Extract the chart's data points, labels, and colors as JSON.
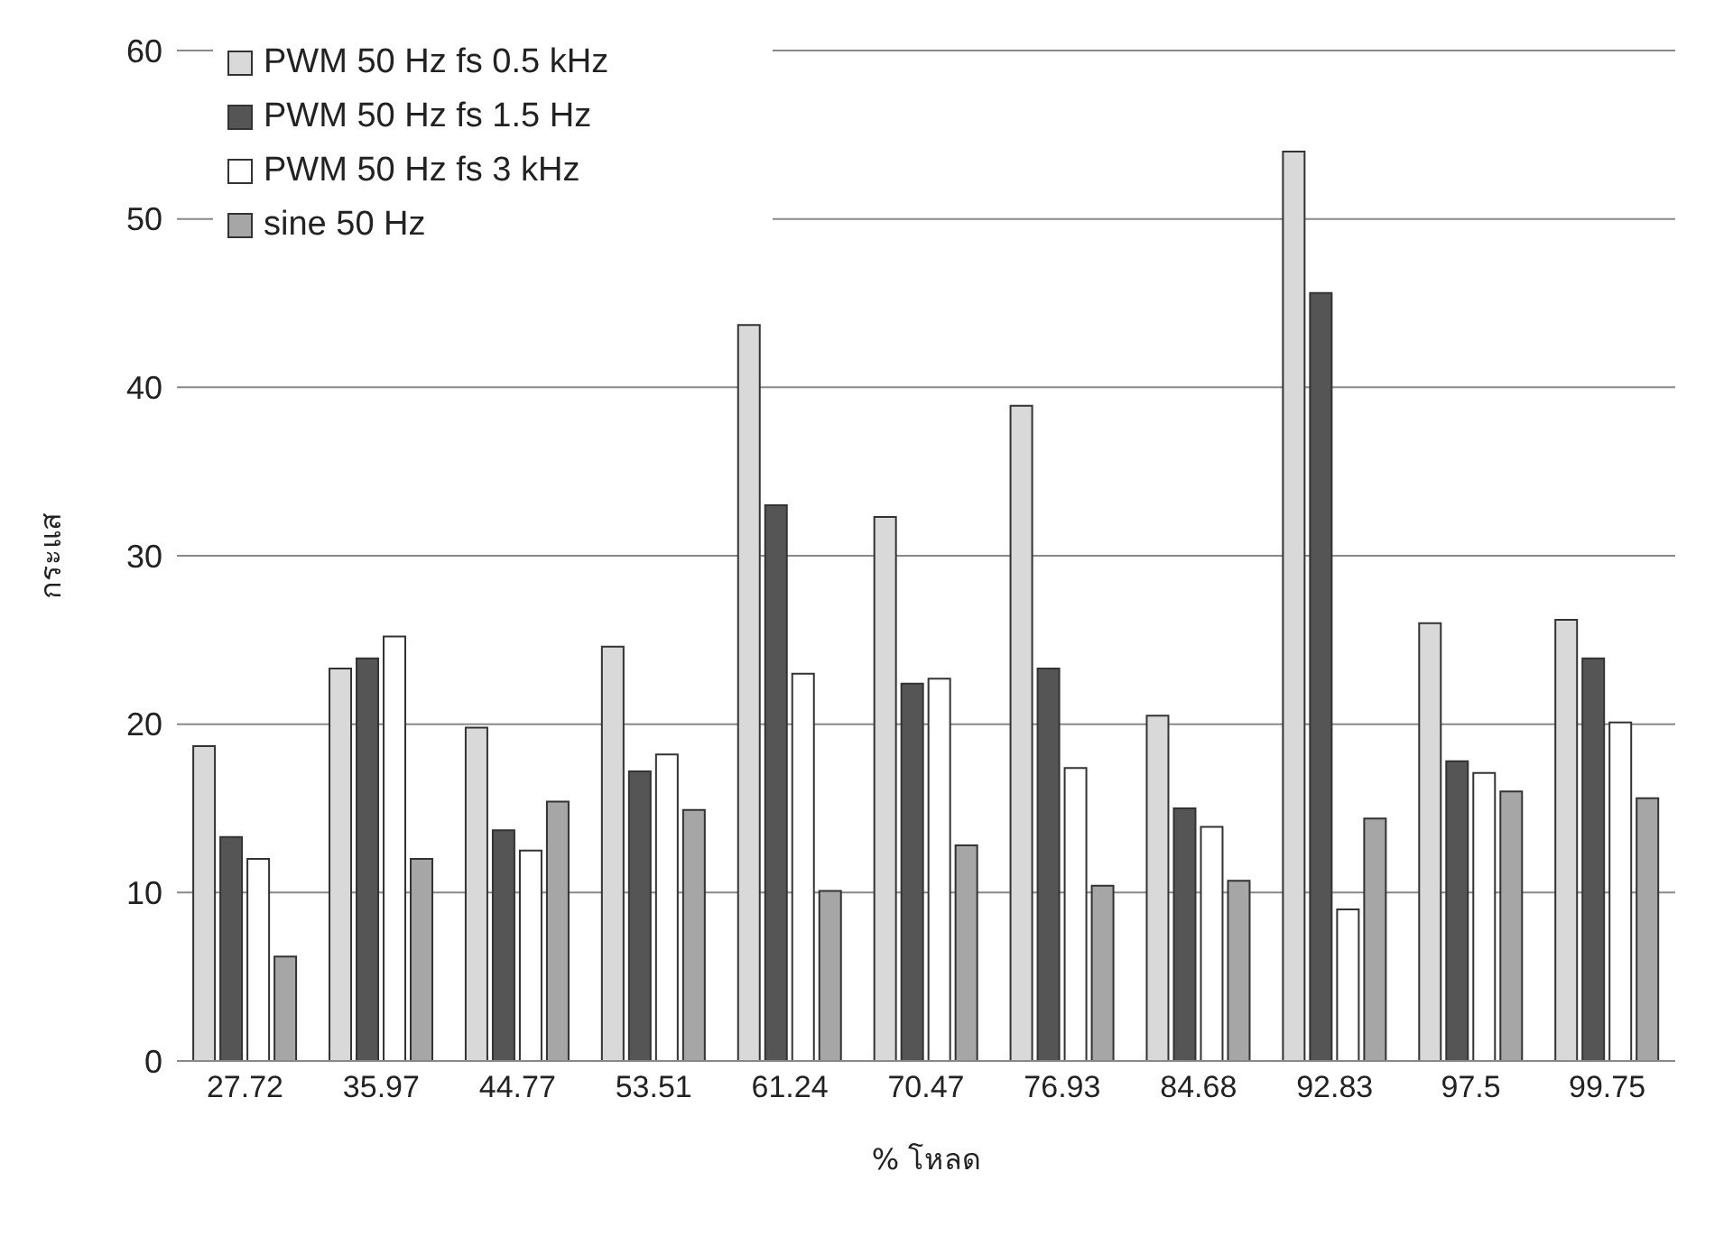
{
  "chart_data": {
    "type": "bar",
    "xlabel": "% โหลด",
    "ylabel": "กระแส",
    "categories": [
      "27.72",
      "35.97",
      "44.77",
      "53.51",
      "61.24",
      "70.47",
      "76.93",
      "84.68",
      "92.83",
      "97.5",
      "99.75"
    ],
    "series": [
      {
        "name": "PWM 50 Hz fs 0.5 kHz",
        "color": "#d9d9d9",
        "values": [
          18.7,
          23.3,
          19.8,
          24.6,
          43.7,
          32.3,
          38.9,
          20.5,
          54.0,
          26.0,
          26.2
        ]
      },
      {
        "name": "PWM 50 Hz fs 1.5 Hz",
        "color": "#555555",
        "values": [
          13.3,
          23.9,
          13.7,
          17.2,
          33.0,
          22.4,
          23.3,
          15.0,
          45.6,
          17.8,
          23.9
        ]
      },
      {
        "name": "PWM 50 Hz fs 3 kHz",
        "color": "#ffffff",
        "values": [
          12.0,
          25.2,
          12.5,
          18.2,
          23.0,
          22.7,
          17.4,
          13.9,
          9.0,
          17.1,
          20.1
        ]
      },
      {
        "name": "sine 50 Hz",
        "color": "#a6a6a6",
        "values": [
          6.2,
          12.0,
          15.4,
          14.9,
          10.1,
          12.8,
          10.4,
          10.7,
          14.4,
          16.0,
          15.6
        ]
      }
    ],
    "ylim": [
      0,
      60
    ],
    "yticks": [
      0,
      10,
      20,
      30,
      40,
      50,
      60
    ],
    "grid": "y",
    "legend": "top left"
  }
}
